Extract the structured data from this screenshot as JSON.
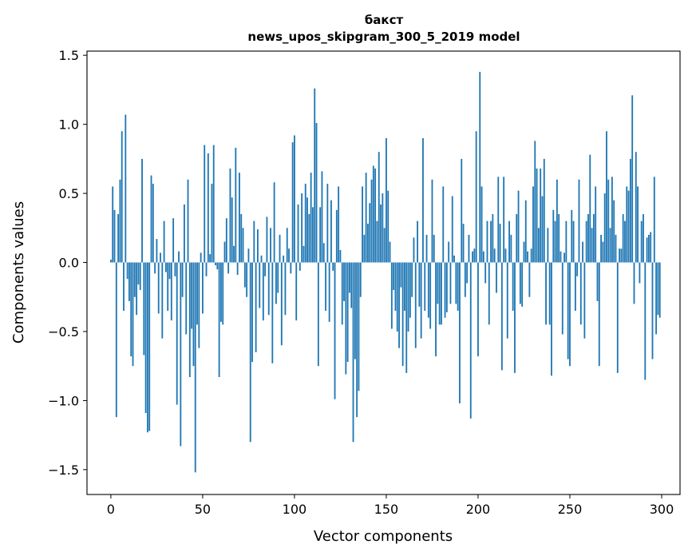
{
  "chart_data": {
    "type": "bar",
    "title": "бакст",
    "subtitle": "news_upos_skipgram_300_5_2019 model",
    "xlabel": "Vector components",
    "ylabel": "Components values",
    "xlim": [
      -13,
      310
    ],
    "ylim": [
      -1.68,
      1.53
    ],
    "xticks": [
      0,
      50,
      100,
      150,
      200,
      250,
      300
    ],
    "yticks": [
      -1.5,
      -1.0,
      -0.5,
      0.0,
      0.5,
      1.0,
      1.5
    ],
    "xtick_labels": [
      "0",
      "50",
      "100",
      "150",
      "200",
      "250",
      "300"
    ],
    "ytick_labels": [
      "−1.5",
      "−1.0",
      "−0.5",
      "0.0",
      "0.5",
      "1.0",
      "1.5"
    ],
    "grid": false,
    "bar_color": "#1f77b4",
    "values": [
      0.02,
      0.55,
      0.38,
      -1.12,
      0.35,
      0.6,
      0.95,
      -0.35,
      1.07,
      -0.12,
      -0.28,
      -0.68,
      -0.75,
      -0.25,
      -0.38,
      -0.16,
      -0.2,
      0.75,
      -0.67,
      -1.09,
      -1.23,
      -1.22,
      0.63,
      0.57,
      -0.08,
      0.17,
      -0.37,
      0.07,
      -0.55,
      0.3,
      -0.07,
      -0.35,
      -0.12,
      -0.42,
      0.32,
      -0.1,
      -1.03,
      0.08,
      -1.33,
      -0.25,
      0.42,
      -0.52,
      0.6,
      -0.83,
      -0.48,
      -0.75,
      -1.52,
      -0.45,
      -0.62,
      0.07,
      -0.37,
      0.85,
      -0.1,
      0.79,
      0.06,
      0.57,
      0.85,
      -0.02,
      -0.05,
      -0.83,
      -0.43,
      -0.45,
      0.15,
      0.32,
      -0.08,
      0.68,
      0.47,
      0.12,
      0.83,
      -0.09,
      0.65,
      0.35,
      0.25,
      -0.18,
      -0.25,
      0.1,
      -1.3,
      -0.72,
      0.3,
      -0.65,
      0.24,
      -0.33,
      0.05,
      -0.42,
      -0.1,
      0.33,
      -0.38,
      0.25,
      -0.73,
      0.58,
      -0.3,
      -0.22,
      0.2,
      -0.6,
      0.05,
      -0.38,
      0.25,
      0.1,
      -0.08,
      0.87,
      0.92,
      -0.42,
      0.42,
      -0.06,
      0.5,
      0.12,
      0.57,
      0.47,
      0.35,
      0.65,
      0.4,
      1.26,
      1.01,
      -0.75,
      0.4,
      0.66,
      0.14,
      -0.35,
      0.57,
      -0.43,
      0.45,
      -0.06,
      -0.99,
      0.38,
      0.55,
      0.09,
      -0.45,
      -0.28,
      -0.81,
      -0.72,
      -0.22,
      -0.33,
      -1.3,
      -0.7,
      -1.12,
      -0.93,
      -0.25,
      0.55,
      0.2,
      0.65,
      0.28,
      0.43,
      0.6,
      0.7,
      0.68,
      0.3,
      0.8,
      0.42,
      0.5,
      0.25,
      0.9,
      0.52,
      0.15,
      -0.48,
      -0.2,
      -0.35,
      -0.5,
      -0.62,
      -0.18,
      -0.75,
      -0.35,
      -0.8,
      -0.5,
      -0.4,
      -0.25,
      0.18,
      -0.62,
      0.3,
      -0.32,
      -0.55,
      0.9,
      -0.35,
      0.2,
      -0.4,
      -0.48,
      0.6,
      0.2,
      -0.68,
      -0.3,
      -0.45,
      -0.45,
      0.55,
      -0.4,
      -0.36,
      0.15,
      -0.3,
      0.48,
      0.05,
      -0.3,
      -0.35,
      -1.02,
      0.75,
      0.28,
      -0.25,
      -0.15,
      0.2,
      -1.13,
      0.08,
      0.1,
      0.95,
      -0.68,
      1.38,
      0.55,
      0.08,
      -0.15,
      0.3,
      -0.45,
      0.3,
      0.35,
      0.1,
      -0.22,
      0.62,
      0.28,
      -0.78,
      0.62,
      0.1,
      -0.55,
      0.3,
      0.2,
      -0.35,
      -0.8,
      0.35,
      0.52,
      -0.3,
      -0.32,
      0.15,
      0.45,
      0.08,
      -0.25,
      0.1,
      0.55,
      0.88,
      0.68,
      0.25,
      0.68,
      0.48,
      0.75,
      -0.45,
      0.25,
      -0.45,
      -0.82,
      0.38,
      0.3,
      0.6,
      0.35,
      0.08,
      -0.52,
      0.07,
      0.3,
      -0.7,
      -0.75,
      0.38,
      0.3,
      -0.35,
      -0.1,
      0.6,
      -0.45,
      0.15,
      -0.55,
      0.3,
      0.35,
      0.78,
      0.25,
      0.35,
      0.55,
      -0.28,
      -0.75,
      0.2,
      0.15,
      0.5,
      0.95,
      0.6,
      0.25,
      0.62,
      0.45,
      0.2,
      -0.8,
      0.1,
      0.1,
      0.35,
      0.3,
      0.55,
      0.52,
      0.75,
      1.21,
      -0.3,
      0.8,
      0.55,
      -0.15,
      0.3,
      0.35,
      -0.85,
      0.18,
      0.2,
      0.22,
      -0.7,
      0.62,
      -0.52,
      -0.38,
      -0.4
    ]
  }
}
